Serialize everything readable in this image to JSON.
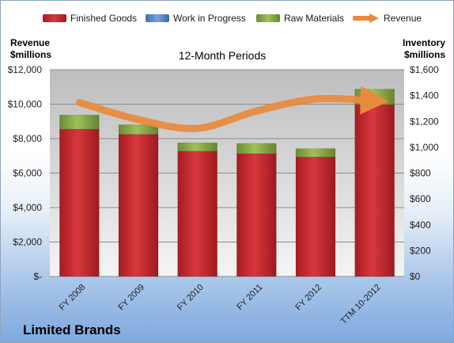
{
  "chart_data": {
    "type": "bar",
    "stacked": true,
    "title": "12-Month Periods",
    "company": "Limited Brands",
    "categories": [
      "FY 2008",
      "FY 2009",
      "FY 2010",
      "FY 2011",
      "FY 2012",
      "TTM 10-2012"
    ],
    "left_axis": {
      "label_line1": "Revenue",
      "label_line2": "$millions",
      "ylim": [
        0,
        12000
      ],
      "ticks": [
        0,
        2000,
        4000,
        6000,
        8000,
        10000,
        12000
      ],
      "tick_labels": [
        "$-",
        "$2,000",
        "$4,000",
        "$6,000",
        "$8,000",
        "$10,000",
        "$12,000"
      ]
    },
    "right_axis": {
      "label_line1": "Inventory",
      "label_line2": "$millions",
      "ylim": [
        0,
        1600
      ],
      "ticks": [
        0,
        200,
        400,
        600,
        800,
        1000,
        1200,
        1400,
        1600
      ],
      "tick_labels": [
        "$0",
        "$200",
        "$400",
        "$600",
        "$800",
        "$1,000",
        "$1,200",
        "$1,400",
        "$1,600"
      ]
    },
    "series": [
      {
        "name": "Finished Goods",
        "axis": "right",
        "kind": "bar",
        "color": "#c0262c",
        "values": [
          1140,
          1100,
          970,
          950,
          925,
          1330
        ]
      },
      {
        "name": "Work in Progress",
        "axis": "right",
        "kind": "bar",
        "color": "#5b87c7",
        "values": [
          0,
          0,
          0,
          0,
          0,
          0
        ]
      },
      {
        "name": "Raw Materials",
        "axis": "right",
        "kind": "bar",
        "color": "#8aa84a",
        "values": [
          110,
          75,
          65,
          80,
          65,
          120
        ]
      },
      {
        "name": "Revenue",
        "axis": "left",
        "kind": "line",
        "color": "#e88a3c",
        "values": [
          10100,
          9100,
          8600,
          9600,
          10300,
          10200
        ]
      }
    ],
    "grid": true,
    "legend_position": "top"
  }
}
